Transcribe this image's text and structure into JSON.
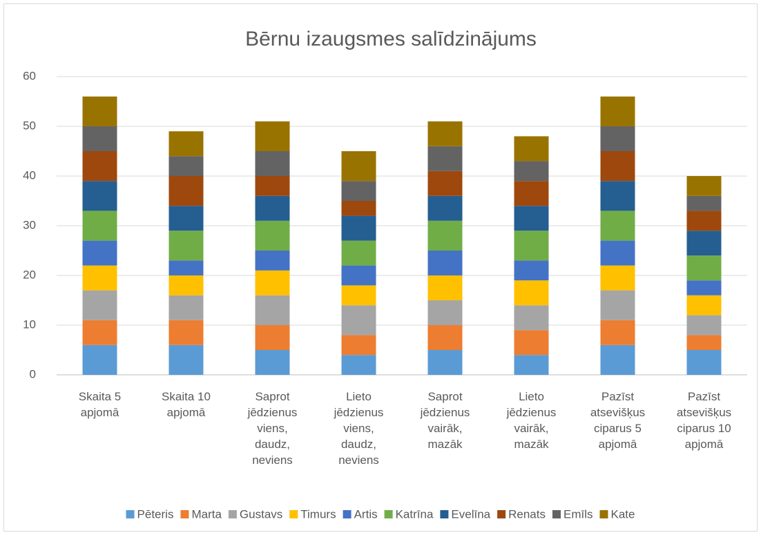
{
  "chart_data": {
    "type": "stacked_bar",
    "title": "Bērnu izaugsmes salīdzinājums",
    "categories": [
      "Skaita 5 apjomā",
      "Skaita 10 apjomā",
      "Saprot jēdzienus viens, daudz, neviens",
      "Lieto jēdzienus viens, daudz, neviens",
      "Saprot jēdzienus vairāk, mazāk",
      "Lieto jēdzienus vairāk, mazāk",
      "Pazīst atsevišķus ciparus 5 apjomā",
      "Pazīst atsevišķus ciparus 10 apjomā"
    ],
    "series": [
      {
        "name": "Pēteris",
        "color": "#5b9bd5",
        "values": [
          6,
          6,
          5,
          4,
          5,
          4,
          6,
          5
        ]
      },
      {
        "name": "Marta",
        "color": "#ed7d31",
        "values": [
          5,
          5,
          5,
          4,
          5,
          5,
          5,
          3
        ]
      },
      {
        "name": "Gustavs",
        "color": "#a5a5a5",
        "values": [
          6,
          5,
          6,
          6,
          5,
          5,
          6,
          4
        ]
      },
      {
        "name": "Timurs",
        "color": "#ffc000",
        "values": [
          5,
          4,
          5,
          4,
          5,
          5,
          5,
          4
        ]
      },
      {
        "name": "Artis",
        "color": "#4472c4",
        "values": [
          5,
          3,
          4,
          4,
          5,
          4,
          5,
          3
        ]
      },
      {
        "name": "Katrīna",
        "color": "#70ad47",
        "values": [
          6,
          6,
          6,
          5,
          6,
          6,
          6,
          5
        ]
      },
      {
        "name": "Evelīna",
        "color": "#255e91",
        "values": [
          6,
          5,
          5,
          5,
          5,
          5,
          6,
          5
        ]
      },
      {
        "name": "Renats",
        "color": "#9e480e",
        "values": [
          6,
          6,
          4,
          3,
          5,
          5,
          6,
          4
        ]
      },
      {
        "name": "Emīls",
        "color": "#636363",
        "values": [
          5,
          4,
          5,
          4,
          5,
          4,
          5,
          3
        ]
      },
      {
        "name": "Kate",
        "color": "#997300",
        "values": [
          6,
          5,
          6,
          6,
          5,
          5,
          6,
          4
        ]
      }
    ],
    "ylim": [
      0,
      60
    ],
    "yticks": [
      0,
      10,
      20,
      30,
      40,
      50,
      60
    ],
    "grid": true,
    "legend": "bottom"
  }
}
